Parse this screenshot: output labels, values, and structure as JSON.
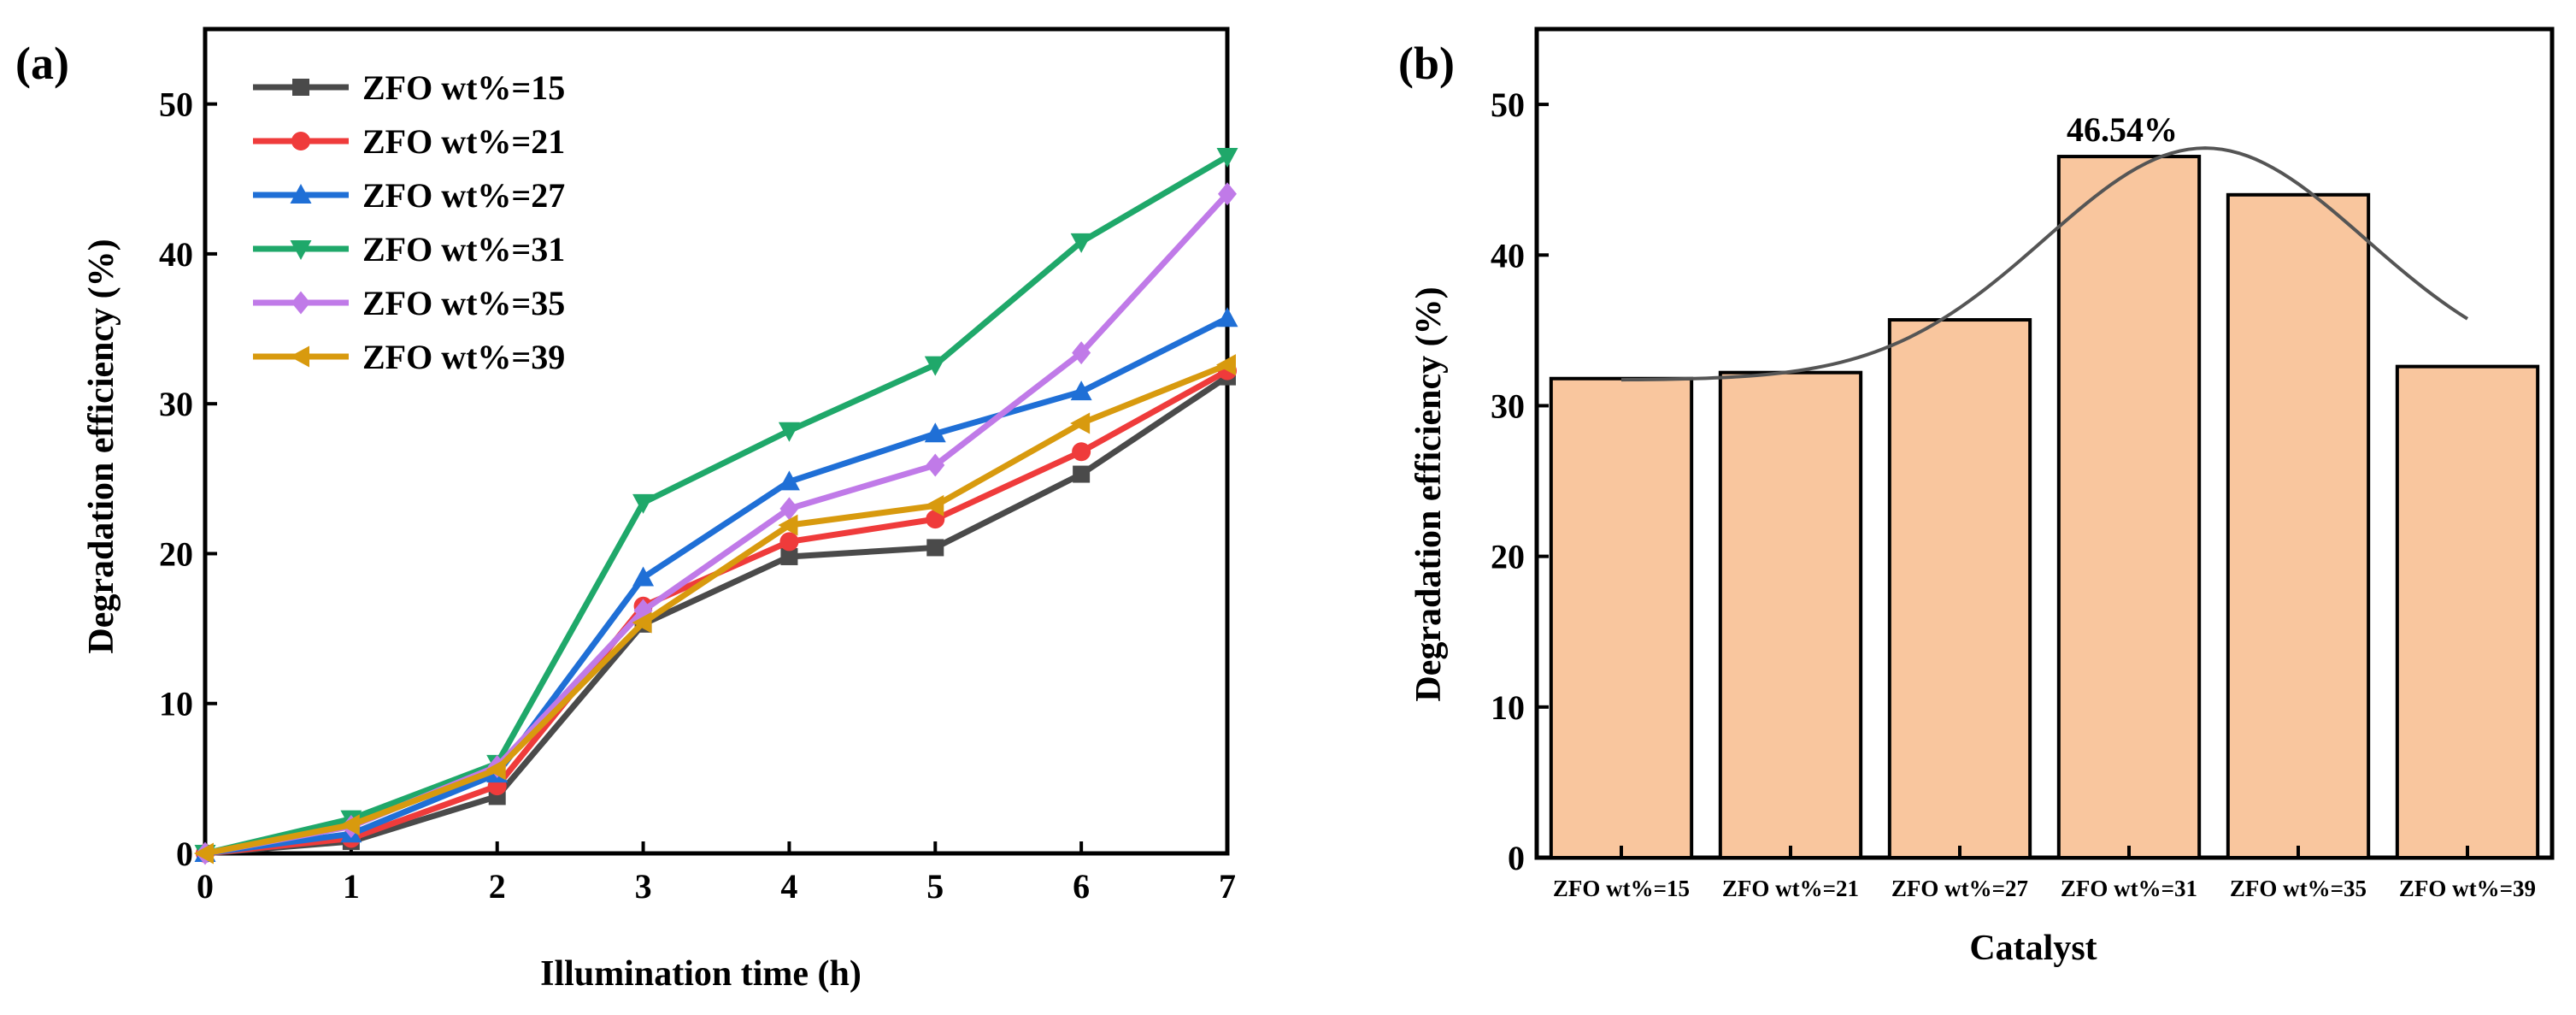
{
  "chart_data": [
    {
      "panel_label": "(a)",
      "type": "line",
      "title": "",
      "xlabel": "Illumination time (h)",
      "ylabel": "Degradation efficiency (%)",
      "xlim": [
        0,
        7
      ],
      "ylim": [
        0,
        55
      ],
      "xticks": [
        0,
        1,
        2,
        3,
        4,
        5,
        6,
        7
      ],
      "yticks": [
        0,
        10,
        20,
        30,
        40,
        50
      ],
      "grid": false,
      "legend_position": "top-left",
      "x": [
        0,
        1,
        2,
        3,
        4,
        5,
        6,
        7
      ],
      "series": [
        {
          "name": "ZFO wt%=15",
          "color": "#4a4a4a",
          "marker": "square",
          "values": [
            0,
            0.8,
            3.8,
            15.3,
            19.8,
            20.4,
            25.3,
            31.8
          ]
        },
        {
          "name": "ZFO wt%=21",
          "color": "#ef3b3b",
          "marker": "circle",
          "values": [
            0,
            1.0,
            4.5,
            16.5,
            20.8,
            22.3,
            26.8,
            32.2
          ]
        },
        {
          "name": "ZFO wt%=27",
          "color": "#1f6fd6",
          "marker": "triangle-up",
          "values": [
            0,
            1.3,
            5.3,
            18.4,
            24.8,
            28.0,
            30.8,
            35.7
          ]
        },
        {
          "name": "ZFO wt%=31",
          "color": "#1fa86a",
          "marker": "triangle-down",
          "values": [
            0,
            2.3,
            6.0,
            23.4,
            28.2,
            32.6,
            40.8,
            46.5
          ]
        },
        {
          "name": "ZFO wt%=35",
          "color": "#c07ae8",
          "marker": "diamond",
          "values": [
            0,
            1.8,
            5.8,
            16.2,
            23.0,
            25.9,
            33.4,
            44.0
          ]
        },
        {
          "name": "ZFO wt%=39",
          "color": "#d89a0e",
          "marker": "triangle-left",
          "values": [
            0,
            1.9,
            5.6,
            15.4,
            21.9,
            23.2,
            28.7,
            32.6
          ]
        }
      ]
    },
    {
      "panel_label": "(b)",
      "type": "bar",
      "title": "",
      "xlabel": "Catalyst",
      "ylabel": "Degradation efficiency (%)",
      "ylim": [
        0,
        55
      ],
      "yticks": [
        0,
        10,
        20,
        30,
        40,
        50
      ],
      "grid": false,
      "bar_color": "#f9c69e",
      "categories": [
        "ZFO wt%=15",
        "ZFO wt%=21",
        "ZFO wt%=27",
        "ZFO wt%=31",
        "ZFO wt%=35",
        "ZFO wt%=39"
      ],
      "values": [
        31.8,
        32.2,
        35.7,
        46.54,
        44.0,
        32.6
      ],
      "annotation": {
        "text": "46.54%",
        "category_index": 3
      },
      "fit_curve": {
        "type": "gaussian",
        "color": "#555555",
        "baseline": 31.7,
        "amplitude": 15.4,
        "center_index": 3.45,
        "width_index": 0.95
      }
    }
  ]
}
